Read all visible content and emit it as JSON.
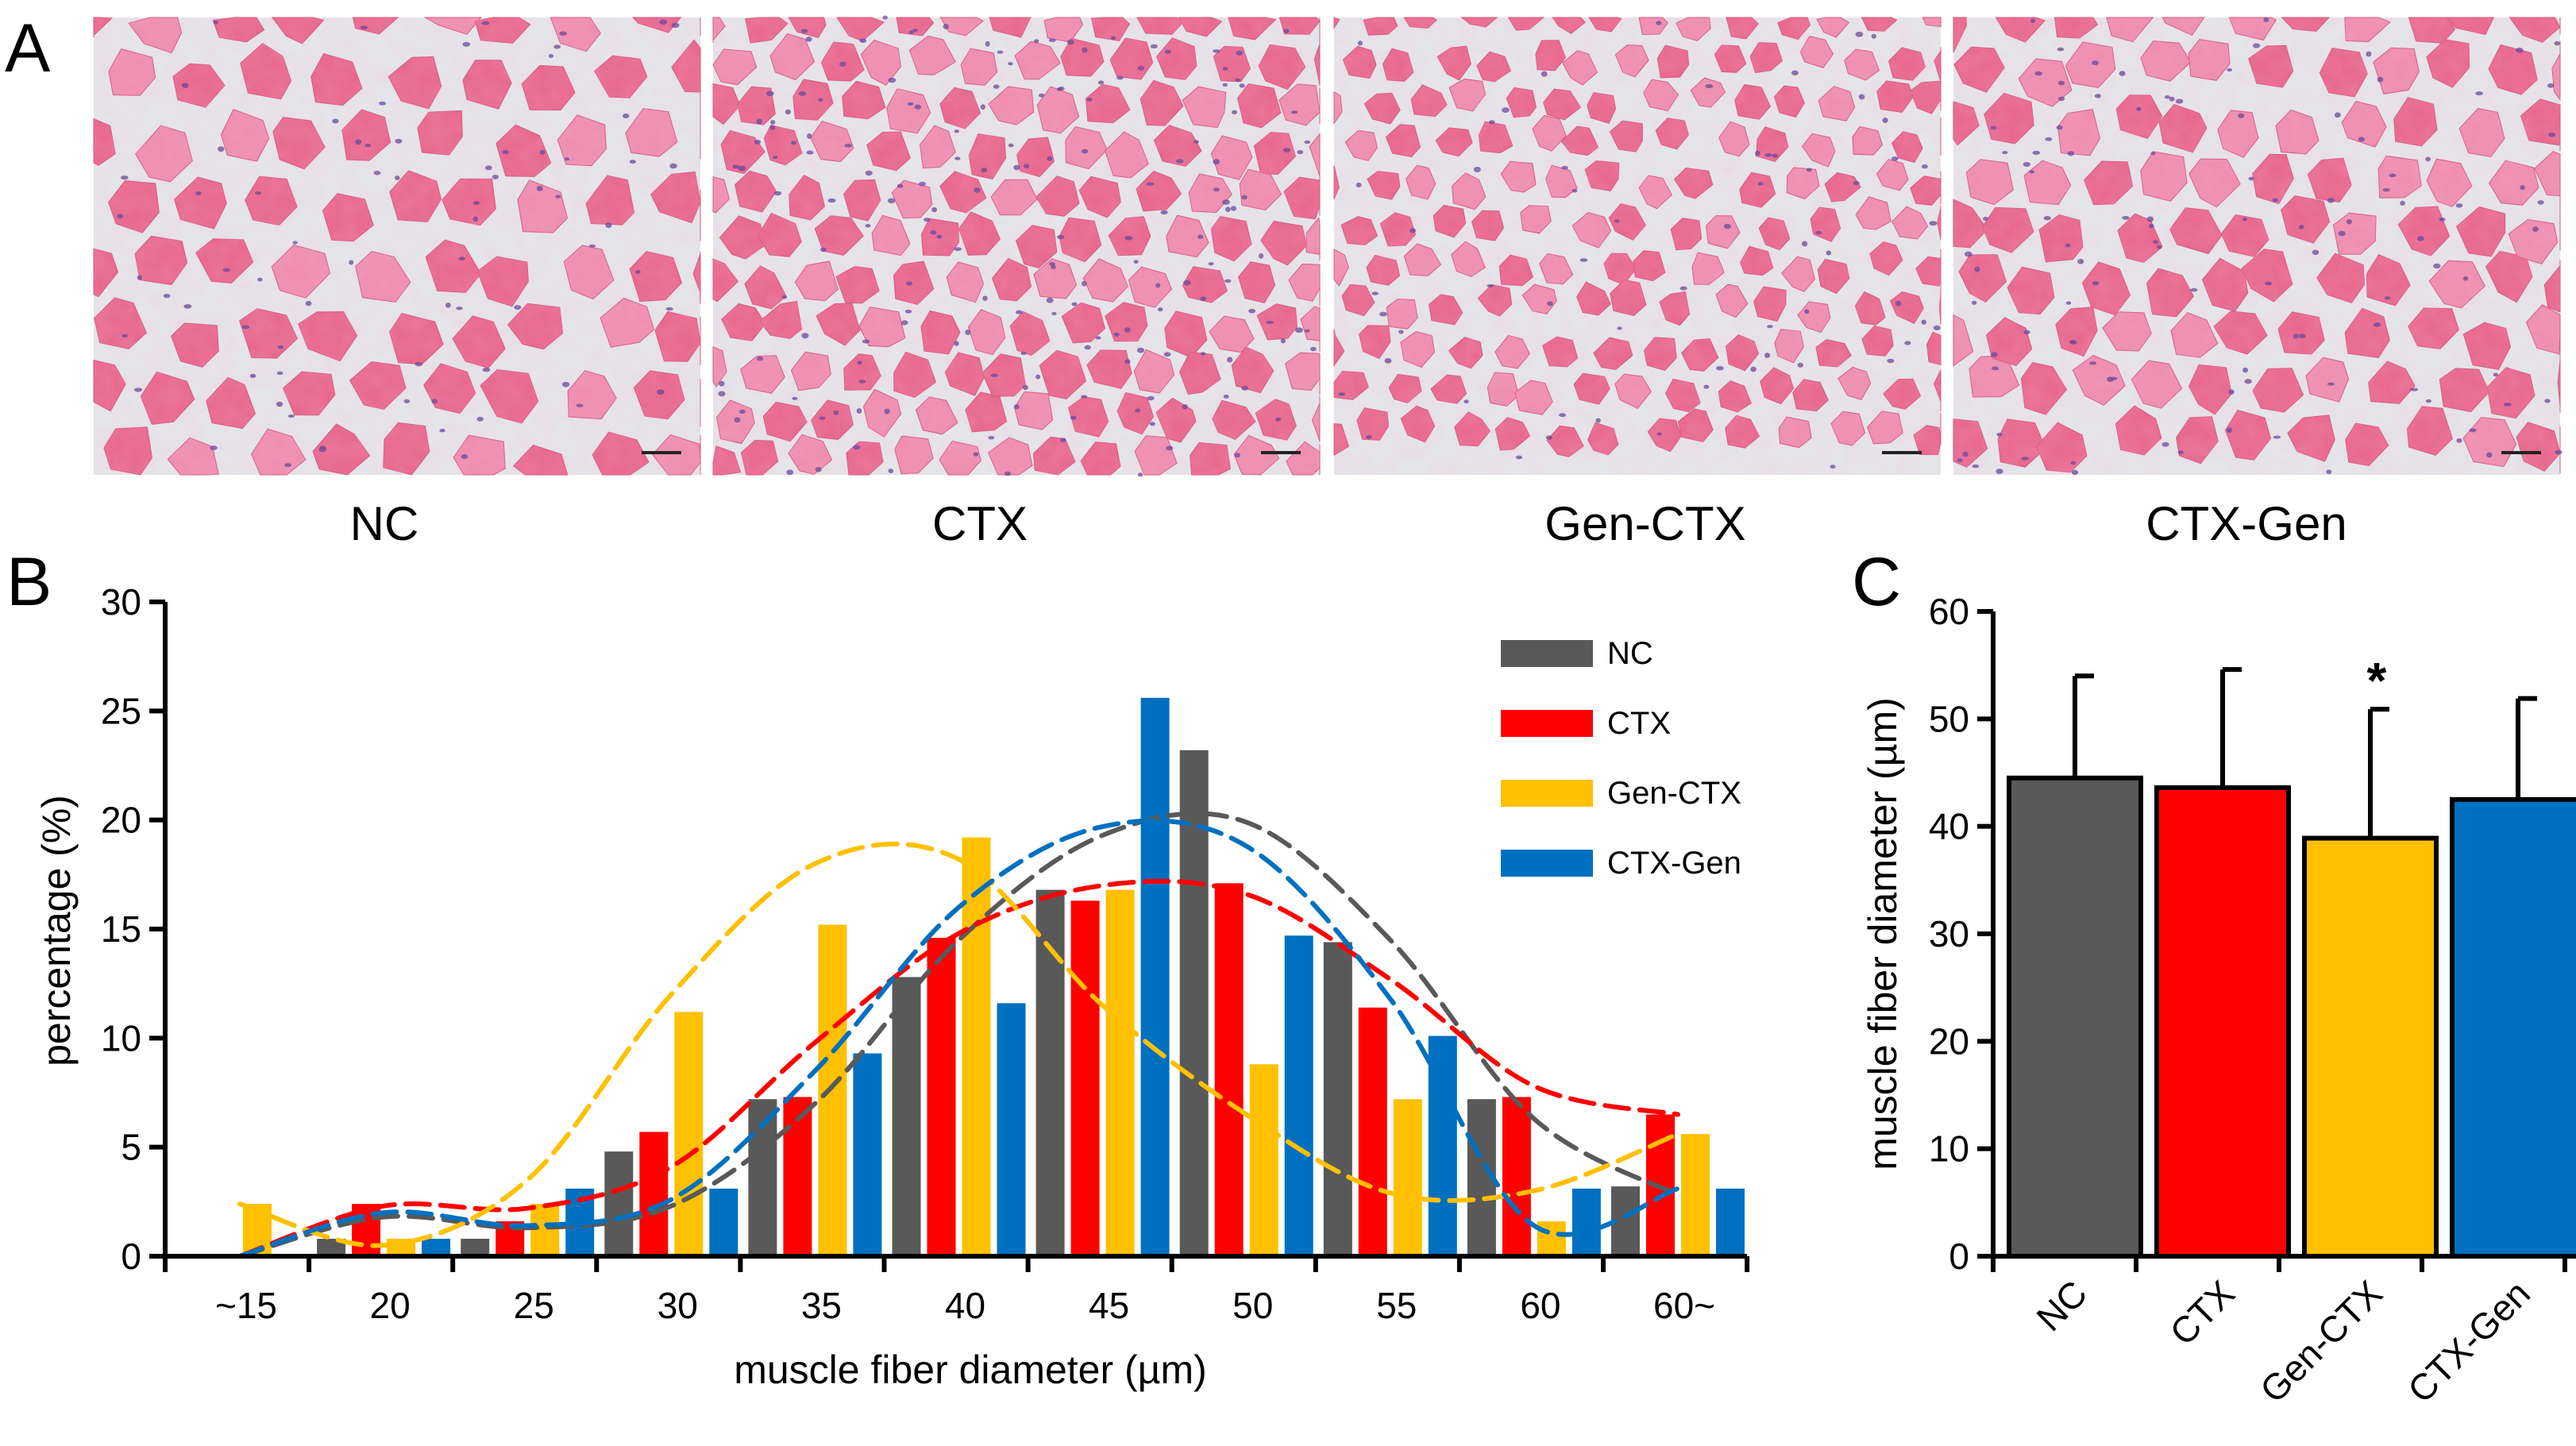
{
  "panels": {
    "a": "A",
    "b": "B",
    "c": "C"
  },
  "micrographs": [
    {
      "label": "NC",
      "style": "separated"
    },
    {
      "label": "CTX",
      "style": "dense"
    },
    {
      "label": "Gen-CTX",
      "style": "small-fibers"
    },
    {
      "label": "CTX-Gen",
      "style": "mixed"
    }
  ],
  "colors": {
    "NC": "#595959",
    "CTX": "#ff0000",
    "Gen-CTX": "#ffc000",
    "CTX-Gen": "#0070c0",
    "tissue": "#e8698f",
    "tissue_light": "#ee8fb0",
    "background": "#e4e6ea",
    "nuclei": "#6a4a9a"
  },
  "chart_data": [
    {
      "type": "bar",
      "title": "",
      "xlabel": "muscle fiber diameter (µm)",
      "ylabel": "percentage (%)",
      "ylim": [
        0,
        30
      ],
      "yticks": [
        "0",
        "5",
        "10",
        "15",
        "20",
        "25",
        "30"
      ],
      "categories": [
        "~15",
        "20",
        "25",
        "30",
        "35",
        "40",
        "45",
        "50",
        "55",
        "60",
        "60~"
      ],
      "legend_position": "top-right",
      "series": [
        {
          "name": "NC",
          "values": [
            0.0,
            0.8,
            0.8,
            4.8,
            7.2,
            12.8,
            16.8,
            23.2,
            14.4,
            7.2,
            3.2
          ]
        },
        {
          "name": "CTX",
          "values": [
            0.0,
            2.4,
            1.6,
            5.7,
            7.3,
            14.6,
            16.3,
            17.1,
            11.4,
            7.3,
            6.5
          ]
        },
        {
          "name": "Gen-CTX",
          "values": [
            2.4,
            0.8,
            2.4,
            11.2,
            15.2,
            19.2,
            16.8,
            8.8,
            7.2,
            1.6,
            5.6
          ]
        },
        {
          "name": "CTX-Gen",
          "values": [
            0.0,
            0.8,
            3.1,
            3.1,
            9.3,
            11.6,
            25.6,
            14.7,
            10.1,
            3.1,
            3.1
          ]
        }
      ],
      "trend_lines": [
        {
          "name": "NC",
          "style": "dashed",
          "values": [
            0.0,
            1.8,
            1.3,
            2.3,
            7.0,
            14.5,
            19.3,
            19.9,
            14.5,
            6.3,
            2.8
          ]
        },
        {
          "name": "CTX",
          "style": "dashed",
          "values": [
            0.0,
            2.3,
            2.2,
            4.1,
            9.8,
            14.8,
            17.0,
            16.6,
            12.7,
            7.8,
            6.5
          ]
        },
        {
          "name": "Gen-CTX",
          "style": "dashed",
          "values": [
            2.4,
            0.5,
            3.5,
            12.0,
            18.0,
            18.2,
            11.5,
            6.5,
            2.9,
            3.0,
            5.6
          ]
        },
        {
          "name": "CTX-Gen",
          "style": "dashed",
          "values": [
            0.0,
            2.0,
            1.4,
            2.6,
            8.5,
            16.0,
            19.7,
            18.8,
            11.8,
            1.4,
            3.1
          ]
        }
      ]
    },
    {
      "type": "bar",
      "title": "",
      "xlabel": "",
      "ylabel": "muscle fiber diameter (µm)",
      "ylim": [
        0,
        60
      ],
      "yticks": [
        "0",
        "10",
        "20",
        "30",
        "40",
        "50",
        "60"
      ],
      "categories": [
        "NC",
        "CTX",
        "Gen-CTX",
        "CTX-Gen"
      ],
      "values": [
        44.5,
        43.6,
        38.9,
        42.5
      ],
      "errors": [
        9.5,
        11.0,
        12.0,
        9.4
      ],
      "annotations": [
        {
          "category": "Gen-CTX",
          "text": "*"
        }
      ]
    }
  ]
}
